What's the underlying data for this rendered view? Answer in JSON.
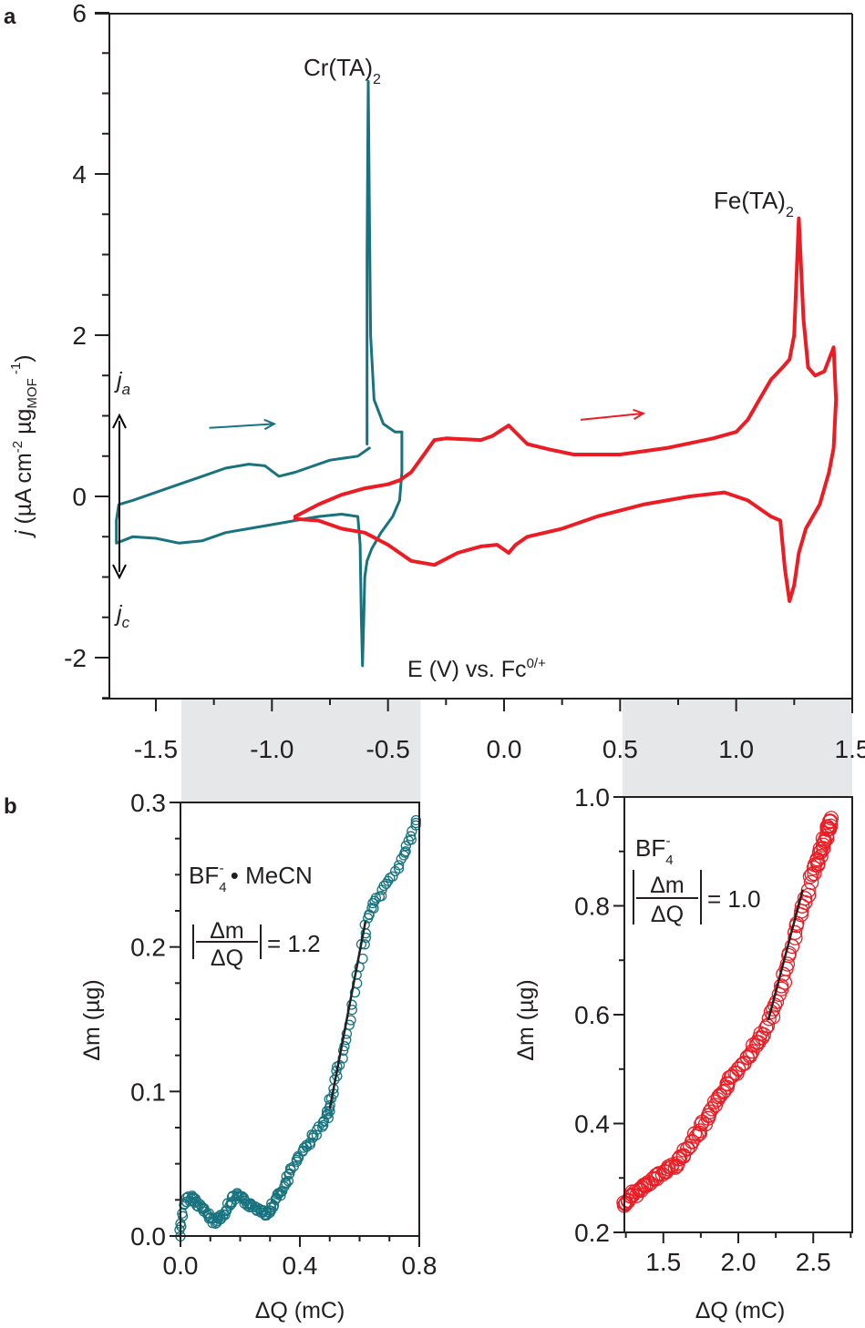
{
  "figure": {
    "panel_a_label": "a",
    "panel_b_label": "b"
  },
  "colors": {
    "cr": "#18737f",
    "fe": "#ec1c24",
    "axis": "#231f20",
    "highlight_band": "#e6e7e8",
    "fit_line": "#231f20"
  },
  "chart_data": [
    {
      "id": "cv",
      "type": "line",
      "title": "",
      "xlabel": "E (V) vs. Fc",
      "xlabel_sup": "0/+",
      "ylabel_prefix": "j",
      "ylabel_text": " (µA cm",
      "ylabel_sup1": "-2",
      "ylabel_mid": " µg",
      "ylabel_sub": "MOF",
      "ylabel_sup2": " -1",
      "ylabel_end": ")",
      "xlim": [
        -1.7,
        1.5
      ],
      "ylim": [
        -2.5,
        6
      ],
      "xticks": [
        -1.5,
        -1.0,
        -0.5,
        0.0,
        0.5,
        1.0,
        1.5
      ],
      "xtick_labels": [
        "-1.5",
        "-1.0",
        "-0.5",
        "0.0",
        "0.5",
        "1.0",
        "1.5"
      ],
      "yticks": [
        -2,
        0,
        2,
        4,
        6
      ],
      "ytick_labels": [
        "-2",
        "0",
        "2",
        "4",
        "6"
      ],
      "highlight_ranges": [
        [
          -1.39,
          -0.36
        ],
        [
          0.51,
          1.5
        ]
      ],
      "annotations": {
        "cr_label": "Cr(TA)",
        "cr_label_sub": "2",
        "fe_label": "Fe(TA)",
        "fe_label_sub": "2",
        "ja": "j",
        "ja_sub": "a",
        "jc": "j",
        "jc_sub": "c"
      },
      "series": [
        {
          "name": "Cr(TA)2",
          "color": "#18737f",
          "x": [
            -0.58,
            -0.63,
            -0.75,
            -0.9,
            -0.97,
            -1.03,
            -1.1,
            -1.2,
            -1.3,
            -1.4,
            -1.5,
            -1.6,
            -1.66,
            -1.67,
            -1.67,
            -1.6,
            -1.5,
            -1.4,
            -1.3,
            -1.2,
            -1.1,
            -1.0,
            -0.9,
            -0.8,
            -0.7,
            -0.63,
            -0.62,
            -0.615,
            -0.61,
            -0.605,
            -0.6,
            -0.59,
            -0.57,
            -0.53,
            -0.48,
            -0.45,
            -0.44,
            -0.44,
            -0.47,
            -0.52,
            -0.56,
            -0.575,
            -0.58,
            -0.585,
            -0.59,
            -0.59
          ],
          "y": [
            0.6,
            0.5,
            0.45,
            0.3,
            0.25,
            0.38,
            0.4,
            0.35,
            0.25,
            0.15,
            0.05,
            -0.05,
            -0.1,
            -0.3,
            -0.58,
            -0.5,
            -0.52,
            -0.58,
            -0.55,
            -0.45,
            -0.4,
            -0.35,
            -0.3,
            -0.25,
            -0.22,
            -0.25,
            -0.6,
            -1.5,
            -2.1,
            -1.6,
            -1.0,
            -0.8,
            -0.65,
            -0.45,
            -0.25,
            -0.05,
            0.3,
            0.8,
            0.8,
            0.9,
            1.2,
            2.0,
            3.5,
            5.15,
            3.0,
            0.65
          ]
        },
        {
          "name": "Fe(TA)2",
          "color": "#ec1c24",
          "x": [
            -0.9,
            -0.8,
            -0.7,
            -0.6,
            -0.5,
            -0.45,
            -0.4,
            -0.35,
            -0.3,
            -0.25,
            -0.1,
            -0.05,
            0.02,
            0.1,
            0.2,
            0.3,
            0.5,
            0.7,
            0.9,
            1.0,
            1.05,
            1.1,
            1.15,
            1.2,
            1.23,
            1.25,
            1.27,
            1.29,
            1.31,
            1.34,
            1.38,
            1.42,
            1.43,
            1.42,
            1.4,
            1.36,
            1.3,
            1.27,
            1.25,
            1.23,
            1.21,
            1.19,
            1.15,
            1.05,
            0.95,
            0.8,
            0.6,
            0.4,
            0.25,
            0.1,
            0.05,
            0.02,
            -0.03,
            -0.1,
            -0.2,
            -0.3,
            -0.4,
            -0.5,
            -0.6,
            -0.7,
            -0.8,
            -0.9
          ],
          "y": [
            -0.25,
            -0.1,
            0.02,
            0.1,
            0.15,
            0.2,
            0.3,
            0.5,
            0.7,
            0.72,
            0.7,
            0.75,
            0.88,
            0.65,
            0.58,
            0.52,
            0.52,
            0.6,
            0.72,
            0.8,
            0.95,
            1.2,
            1.45,
            1.6,
            1.7,
            2.0,
            3.45,
            2.2,
            1.6,
            1.5,
            1.55,
            1.85,
            1.2,
            0.6,
            0.3,
            -0.1,
            -0.4,
            -0.7,
            -1.1,
            -1.3,
            -0.9,
            -0.3,
            -0.25,
            -0.05,
            0.05,
            0.0,
            -0.1,
            -0.25,
            -0.4,
            -0.5,
            -0.6,
            -0.7,
            -0.6,
            -0.62,
            -0.7,
            -0.85,
            -0.8,
            -0.6,
            -0.45,
            -0.4,
            -0.3,
            -0.28
          ]
        }
      ],
      "scan_arrows": [
        {
          "series": "Cr(TA)2",
          "from": [
            -1.27,
            0.85
          ],
          "to": [
            -0.99,
            0.9
          ]
        },
        {
          "series": "Fe(TA)2",
          "from": [
            0.33,
            0.95
          ],
          "to": [
            0.6,
            1.03
          ]
        }
      ]
    },
    {
      "id": "eqcm-cr",
      "type": "scatter",
      "xlabel": "ΔQ (mC)",
      "ylabel": "Δm (µg)",
      "xlim": [
        0.0,
        0.8
      ],
      "ylim": [
        0.0,
        0.3
      ],
      "xticks": [
        0.0,
        0.4,
        0.8
      ],
      "xtick_labels": [
        "0.0",
        "0.4",
        "0.8"
      ],
      "yticks": [
        0.0,
        0.1,
        0.2,
        0.3
      ],
      "ytick_labels": [
        "0.0",
        "0.1",
        "0.2",
        "0.3"
      ],
      "annotation_species": "BF",
      "annotation_species_sub": "4",
      "annotation_species_sup": "-",
      "annotation_species_rest": " • MeCN",
      "slope_label_num": "Δm",
      "slope_label_den": "ΔQ",
      "slope_value": "= 1.2",
      "color": "#18737f",
      "curve": {
        "x": [
          0.0,
          0.01,
          0.03,
          0.05,
          0.07,
          0.09,
          0.11,
          0.13,
          0.15,
          0.17,
          0.19,
          0.21,
          0.23,
          0.25,
          0.27,
          0.29,
          0.31,
          0.33,
          0.35,
          0.37,
          0.4,
          0.43,
          0.46,
          0.49,
          0.5,
          0.52,
          0.55,
          0.58,
          0.61,
          0.63,
          0.66,
          0.7,
          0.74,
          0.77,
          0.8
        ],
        "y": [
          0.0,
          0.02,
          0.027,
          0.025,
          0.02,
          0.015,
          0.01,
          0.012,
          0.016,
          0.024,
          0.028,
          0.025,
          0.022,
          0.02,
          0.018,
          0.015,
          0.022,
          0.028,
          0.035,
          0.045,
          0.055,
          0.065,
          0.073,
          0.082,
          0.09,
          0.11,
          0.13,
          0.16,
          0.2,
          0.222,
          0.233,
          0.245,
          0.26,
          0.275,
          0.29
        ]
      },
      "fit": {
        "x": [
          0.5,
          0.62
        ],
        "y": [
          0.088,
          0.218
        ],
        "slope": 1.2
      }
    },
    {
      "id": "eqcm-fe",
      "type": "scatter",
      "xlabel": "ΔQ (mC)",
      "ylabel": "Δm (µg)",
      "xlim": [
        1.24,
        2.76
      ],
      "ylim": [
        0.2,
        1.0
      ],
      "xticks": [
        1.5,
        2.0,
        2.5
      ],
      "xtick_labels": [
        "1.5",
        "2.0",
        "2.5"
      ],
      "yticks": [
        0.2,
        0.4,
        0.6,
        0.8,
        1.0
      ],
      "ytick_labels": [
        "0.2",
        "0.4",
        "0.6",
        "0.8",
        "1.0"
      ],
      "annotation_species": "BF",
      "annotation_species_sub": "4",
      "annotation_species_sup": "-",
      "annotation_species_rest": "",
      "slope_label_num": "Δm",
      "slope_label_den": "ΔQ",
      "slope_value": "= 1.0",
      "color": "#ec1c24",
      "curve": {
        "x": [
          1.24,
          1.3,
          1.4,
          1.5,
          1.6,
          1.7,
          1.8,
          1.9,
          2.0,
          2.1,
          2.2,
          2.3,
          2.4,
          2.5,
          2.55,
          2.6,
          2.62
        ],
        "y": [
          0.25,
          0.27,
          0.29,
          0.31,
          0.33,
          0.37,
          0.41,
          0.46,
          0.5,
          0.54,
          0.58,
          0.66,
          0.77,
          0.86,
          0.9,
          0.94,
          0.96
        ]
      },
      "fit": {
        "x": [
          2.2,
          2.43
        ],
        "y": [
          0.59,
          0.83
        ],
        "slope": 1.0
      }
    }
  ]
}
